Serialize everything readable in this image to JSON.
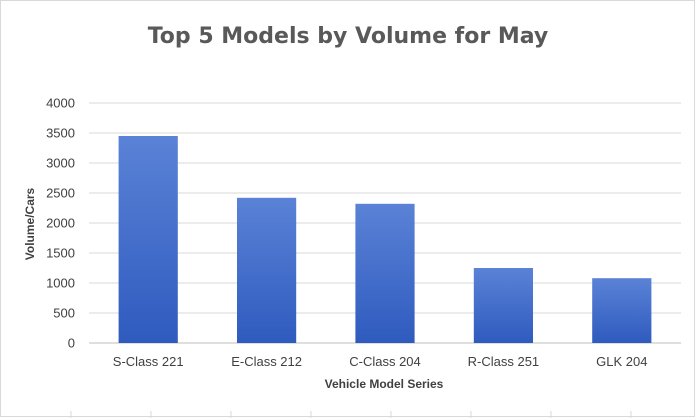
{
  "chart_data": {
    "type": "bar",
    "title": "Top 5 Models by Volume for May",
    "xlabel": "Vehicle Model Series",
    "ylabel": "Volume/Cars",
    "categories": [
      "S-Class 221",
      "E-Class 212",
      "C-Class 204",
      "R-Class 251",
      "GLK 204"
    ],
    "values": [
      3450,
      2420,
      2320,
      1250,
      1080
    ],
    "ylim": [
      0,
      4000
    ],
    "yticks": [
      0,
      500,
      1000,
      1500,
      2000,
      2500,
      3000,
      3500,
      4000
    ],
    "grid": true,
    "legend": "none",
    "colors": {
      "bar_top": "#5a82d6",
      "bar_bottom": "#2f5bbf"
    }
  }
}
